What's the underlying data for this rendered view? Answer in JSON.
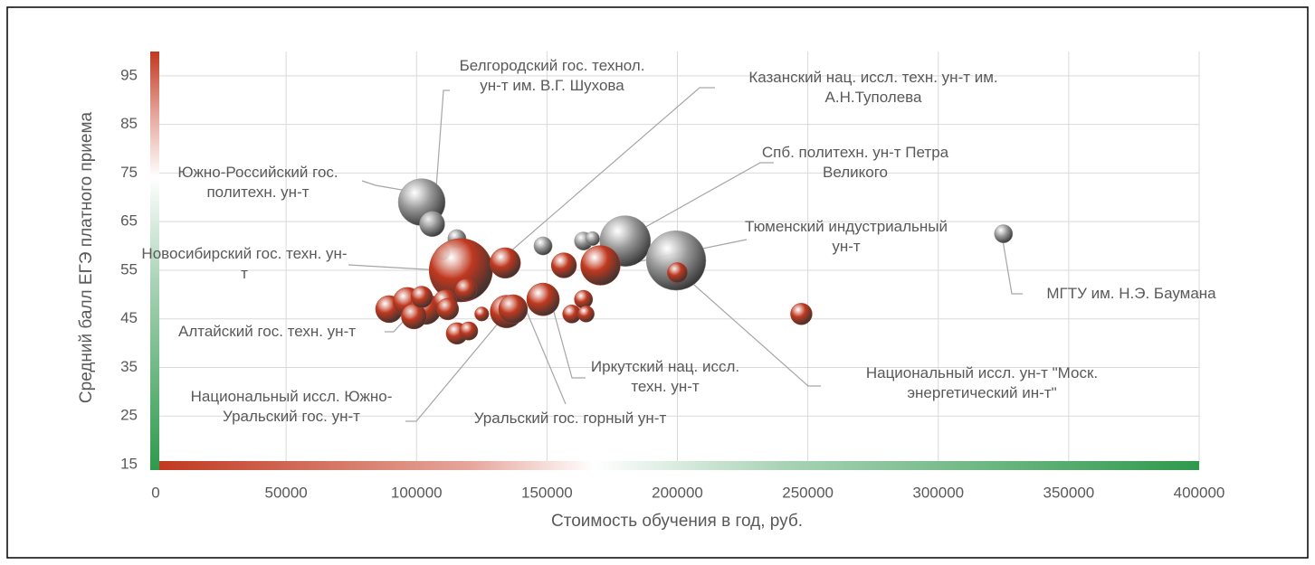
{
  "chart_data": {
    "type": "bubble",
    "x_label": "Стоимость обучения в год, руб.",
    "y_label": "Средний балл ЕГЭ платного приема",
    "xlim": [
      0,
      400000
    ],
    "xticks": [
      0,
      50000,
      100000,
      150000,
      200000,
      250000,
      300000,
      350000,
      400000
    ],
    "ylim": [
      15,
      100
    ],
    "yticks": [
      15,
      25,
      35,
      45,
      55,
      65,
      75,
      85,
      95
    ],
    "grid": true,
    "series": [
      {
        "color": "#9a9a9a",
        "x": [
          102000,
          106000,
          115500,
          110000,
          120500,
          148500,
          164000,
          167500,
          180000,
          199500,
          325000
        ],
        "values": [
          69,
          64.5,
          61.5,
          58.5,
          56.5,
          60,
          61,
          61.5,
          61,
          57,
          62.5
        ],
        "sizes": [
          66,
          19,
          10,
          6,
          8,
          10,
          10,
          6,
          77,
          106,
          10
        ]
      },
      {
        "color": "#c0381f",
        "x": [
          117000,
          134000,
          156500,
          170500,
          200000,
          247500,
          89500,
          96500,
          103500,
          111000,
          99000,
          112000,
          115500,
          120000,
          119000,
          125000,
          134500,
          137000,
          148500,
          159500,
          164000,
          165000,
          102000
        ],
        "values": [
          55,
          56.5,
          56,
          56,
          54.5,
          46,
          47,
          48.5,
          47,
          48.5,
          45.5,
          47,
          42,
          42.5,
          51,
          46,
          46.5,
          47,
          49,
          46,
          49,
          46,
          49.5
        ],
        "sizes": [
          120,
          28,
          19,
          47,
          12,
          14,
          22,
          25,
          28,
          17,
          19,
          14,
          14,
          10,
          14,
          6,
          32,
          25,
          32,
          10,
          10,
          8,
          14
        ]
      }
    ],
    "annotations": [
      "Белгородский гос. технол. ун-т им. В.Г. Шухова",
      "Казанский нац. иссл. техн. ун-т им. А.Н.Туполева",
      "Спб. политехн. ун-т Петра Великого",
      "Южно-Российский гос. политехн. ун-т",
      "Тюменский индустриальный ун-т",
      "Новосибирский гос. техн. ун-т",
      "МГТУ им. Н.Э. Баумана",
      "Алтайский гос. техн. ун-т",
      "Иркутский нац. иссл. техн. ун-т",
      "Национальный иссл. Южно-Уральский гос. ун-т",
      "Уральский гос. горный ун-т",
      "Национальный иссл. ун-т \"Моск. энергетический ин-т\""
    ]
  }
}
